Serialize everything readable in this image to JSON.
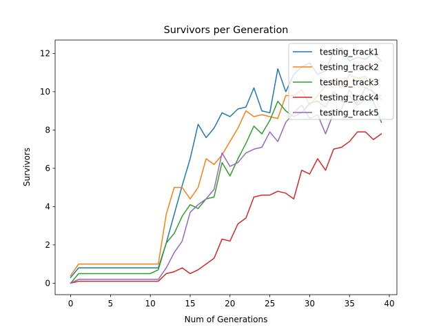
{
  "chart_data": {
    "type": "line",
    "title": "Survivors per Generation",
    "xlabel": "Num of Generations",
    "ylabel": "Survivors",
    "xlim": [
      -1.95,
      40.95
    ],
    "ylim": [
      -0.6,
      12.7
    ],
    "xticks": [
      0,
      5,
      10,
      15,
      20,
      25,
      30,
      35,
      40
    ],
    "yticks": [
      0,
      2,
      4,
      6,
      8,
      10,
      12
    ],
    "grid": false,
    "legend_position": "top-right",
    "x": [
      0,
      1,
      2,
      3,
      4,
      5,
      6,
      7,
      8,
      9,
      10,
      11,
      12,
      13,
      14,
      15,
      16,
      17,
      18,
      19,
      20,
      21,
      22,
      23,
      24,
      25,
      26,
      27,
      28,
      29,
      30,
      31,
      32,
      33,
      34,
      35,
      36,
      37,
      38,
      39
    ],
    "series": [
      {
        "name": "testing_track1",
        "color": "#1f77b4",
        "values": [
          0.3,
          0.8,
          0.8,
          0.8,
          0.8,
          0.8,
          0.8,
          0.8,
          0.8,
          0.8,
          0.8,
          0.8,
          2.1,
          3.6,
          5.1,
          6.5,
          8.3,
          7.6,
          8.1,
          8.9,
          8.7,
          9.1,
          9.2,
          10.2,
          9.0,
          8.9,
          11.2,
          10.0,
          10.9,
          11.3,
          11.5,
          10.9,
          11.1,
          12.1,
          12.3,
          11.6,
          11.8,
          11.7,
          12.0,
          11.6
        ]
      },
      {
        "name": "testing_track2",
        "color": "#ff7f0e",
        "values": [
          0.4,
          1.0,
          1.0,
          1.0,
          1.0,
          1.0,
          1.0,
          1.0,
          1.0,
          1.0,
          1.0,
          1.0,
          3.6,
          5.0,
          5.0,
          4.4,
          5.0,
          6.5,
          6.2,
          6.7,
          7.4,
          8.1,
          9.0,
          8.7,
          8.8,
          8.7,
          8.6,
          9.8,
          9.8,
          10.1,
          9.3,
          9.8,
          10.3,
          10.5,
          10.2,
          10.9,
          10.7,
          10.8,
          9.9,
          9.8
        ]
      },
      {
        "name": "testing_track3",
        "color": "#2ca02c",
        "values": [
          0.0,
          0.5,
          0.5,
          0.5,
          0.5,
          0.5,
          0.5,
          0.5,
          0.5,
          0.5,
          0.5,
          0.7,
          2.1,
          2.6,
          3.5,
          4.1,
          3.9,
          4.4,
          4.5,
          6.3,
          5.6,
          6.5,
          7.3,
          8.2,
          7.8,
          8.5,
          9.5,
          9.0,
          8.7,
          8.9,
          9.4,
          9.5,
          9.2,
          10.0,
          9.5,
          9.8,
          9.3,
          9.6,
          9.5,
          8.4
        ]
      },
      {
        "name": "testing_track4",
        "color": "#d62728",
        "values": [
          0.0,
          0.1,
          0.1,
          0.1,
          0.1,
          0.1,
          0.1,
          0.1,
          0.1,
          0.1,
          0.1,
          0.1,
          0.5,
          0.6,
          0.8,
          0.5,
          0.7,
          1.0,
          1.3,
          2.3,
          2.2,
          3.1,
          3.4,
          4.5,
          4.6,
          4.6,
          4.8,
          4.7,
          4.4,
          5.9,
          5.7,
          6.5,
          5.9,
          7.0,
          7.1,
          7.4,
          7.9,
          7.9,
          7.5,
          7.8
        ]
      },
      {
        "name": "testing_track5",
        "color": "#9467bd",
        "values": [
          0.0,
          0.2,
          0.2,
          0.2,
          0.2,
          0.2,
          0.2,
          0.2,
          0.2,
          0.2,
          0.2,
          0.2,
          0.8,
          1.6,
          2.2,
          3.7,
          4.1,
          4.4,
          4.9,
          6.8,
          6.1,
          6.3,
          6.8,
          7.0,
          7.1,
          7.9,
          7.4,
          8.4,
          8.9,
          9.3,
          8.6,
          8.8,
          7.8,
          8.9,
          9.1,
          10.1,
          9.4,
          10.2,
          10.0,
          9.6
        ]
      }
    ]
  }
}
